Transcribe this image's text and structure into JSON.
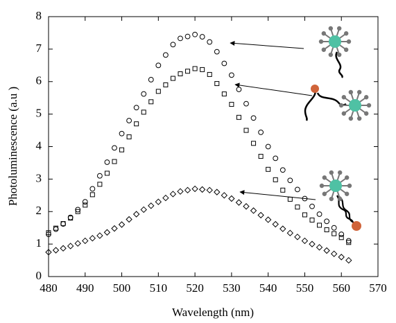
{
  "chart_data": {
    "type": "scatter",
    "x_label": "Wavelength (nm)",
    "y_label": "Photoluminescence (a.u )",
    "x": [
      480,
      482,
      484,
      486,
      488,
      490,
      492,
      494,
      496,
      498,
      500,
      502,
      504,
      506,
      508,
      510,
      512,
      514,
      516,
      518,
      520,
      522,
      524,
      526,
      528,
      530,
      532,
      534,
      536,
      538,
      540,
      542,
      544,
      546,
      548,
      550,
      552,
      554,
      556,
      558,
      560,
      562
    ],
    "series": [
      {
        "marker": "circle",
        "color": "#000000",
        "values": [
          1.3,
          1.46,
          1.62,
          1.82,
          2.06,
          2.3,
          2.7,
          3.1,
          3.52,
          3.96,
          4.4,
          4.8,
          5.2,
          5.62,
          6.06,
          6.5,
          6.82,
          7.14,
          7.33,
          7.39,
          7.45,
          7.38,
          7.22,
          6.92,
          6.56,
          6.2,
          5.76,
          5.32,
          4.88,
          4.44,
          4.0,
          3.64,
          3.28,
          2.96,
          2.68,
          2.4,
          2.16,
          1.92,
          1.7,
          1.5,
          1.3,
          1.1
        ]
      },
      {
        "marker": "square",
        "color": "#000000",
        "values": [
          1.35,
          1.49,
          1.63,
          1.8,
          2.0,
          2.2,
          2.52,
          2.84,
          3.18,
          3.54,
          3.9,
          4.3,
          4.7,
          5.06,
          5.38,
          5.7,
          5.9,
          6.1,
          6.24,
          6.32,
          6.4,
          6.37,
          6.22,
          5.94,
          5.62,
          5.3,
          4.9,
          4.5,
          4.1,
          3.7,
          3.3,
          2.98,
          2.66,
          2.38,
          2.14,
          1.9,
          1.74,
          1.58,
          1.44,
          1.32,
          1.2,
          1.05
        ]
      },
      {
        "marker": "diamond",
        "color": "#000000",
        "values": [
          0.75,
          0.81,
          0.87,
          0.94,
          1.02,
          1.1,
          1.18,
          1.26,
          1.36,
          1.48,
          1.6,
          1.76,
          1.92,
          2.06,
          2.18,
          2.3,
          2.42,
          2.54,
          2.62,
          2.66,
          2.7,
          2.68,
          2.66,
          2.6,
          2.5,
          2.4,
          2.28,
          2.16,
          2.03,
          1.89,
          1.75,
          1.61,
          1.47,
          1.34,
          1.22,
          1.1,
          1.0,
          0.9,
          0.8,
          0.7,
          0.6,
          0.5
        ]
      }
    ],
    "xlim": [
      480,
      570
    ],
    "xticks": [
      480,
      490,
      500,
      510,
      520,
      530,
      540,
      550,
      560,
      570
    ],
    "ylim": [
      0,
      8
    ],
    "yticks": [
      0,
      1,
      2,
      3,
      4,
      5,
      6,
      7,
      8
    ],
    "grid": false
  }
}
